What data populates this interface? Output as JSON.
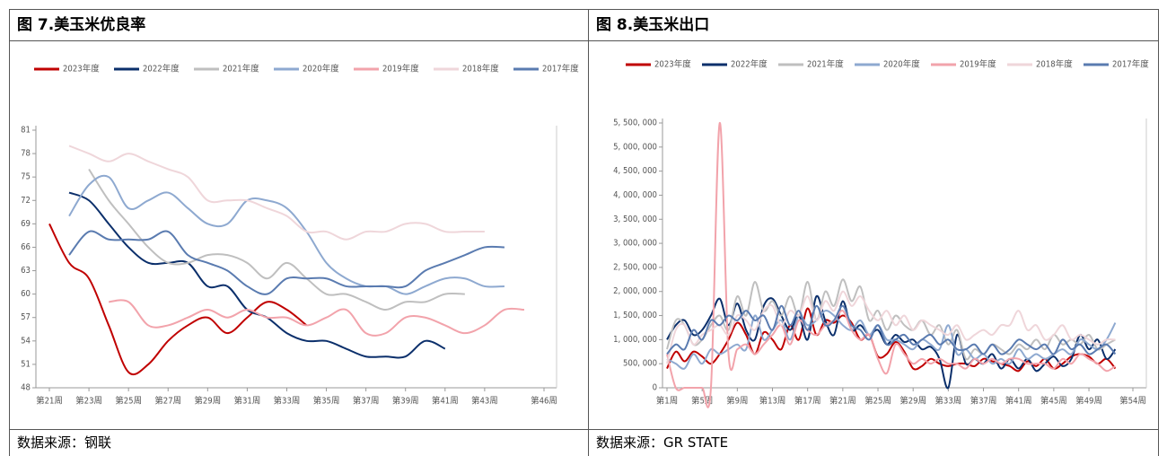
{
  "chart_data": [
    {
      "type": "line",
      "title": "图 7.美玉米优良率",
      "source": "数据来源：钢联",
      "categories": [
        "第21周",
        null,
        "第23周",
        null,
        "第25周",
        null,
        "第27周",
        null,
        "第29周",
        null,
        "第31周",
        null,
        "第33周",
        null,
        "第35周",
        null,
        "第37周",
        null,
        "第39周",
        null,
        "第41周",
        null,
        "第43周",
        null,
        null,
        "第46周"
      ],
      "ylim": [
        48,
        81
      ],
      "yticks": [
        48,
        51,
        54,
        57,
        60,
        63,
        66,
        69,
        72,
        75,
        78,
        81
      ],
      "legend": "top",
      "series": [
        {
          "name": "2023年度",
          "color": "#c00000",
          "values": [
            69,
            64,
            62,
            56,
            50,
            51,
            54,
            56,
            57,
            55,
            57,
            59,
            58,
            56,
            null,
            null,
            null,
            null,
            null,
            null,
            null,
            null,
            null,
            null,
            null,
            null
          ]
        },
        {
          "name": "2022年度",
          "color": "#0b2f6b",
          "values": [
            null,
            73,
            72,
            69,
            66,
            64,
            64,
            64,
            61,
            61,
            58,
            57,
            55,
            54,
            54,
            53,
            52,
            52,
            52,
            54,
            53,
            null,
            null,
            null,
            null,
            null
          ]
        },
        {
          "name": "2021年度",
          "color": "#bfbfbf",
          "values": [
            null,
            null,
            76,
            72,
            69,
            66,
            64,
            64,
            65,
            65,
            64,
            62,
            64,
            62,
            60,
            60,
            59,
            58,
            59,
            59,
            60,
            60,
            null,
            null,
            null,
            null
          ]
        },
        {
          "name": "2020年度",
          "color": "#8ea9d0",
          "values": [
            null,
            70,
            74,
            75,
            71,
            72,
            73,
            71,
            69,
            69,
            72,
            72,
            71,
            68,
            64,
            62,
            61,
            61,
            60,
            61,
            62,
            62,
            61,
            61,
            null,
            null
          ]
        },
        {
          "name": "2019年度",
          "color": "#f2a3ab",
          "values": [
            null,
            null,
            null,
            59,
            59,
            56,
            56,
            57,
            58,
            57,
            58,
            57,
            57,
            56,
            57,
            58,
            55,
            55,
            57,
            57,
            56,
            55,
            56,
            58,
            58,
            null
          ]
        },
        {
          "name": "2018年度",
          "color": "#efd6da",
          "values": [
            null,
            79,
            78,
            77,
            78,
            77,
            76,
            75,
            72,
            72,
            72,
            71,
            70,
            68,
            68,
            67,
            68,
            68,
            69,
            69,
            68,
            68,
            68,
            null,
            null,
            null
          ]
        },
        {
          "name": "2017年度",
          "color": "#5a7bb0",
          "values": [
            null,
            65,
            68,
            67,
            67,
            67,
            68,
            65,
            64,
            63,
            61,
            60,
            62,
            62,
            62,
            61,
            61,
            61,
            61,
            63,
            64,
            65,
            66,
            66,
            null,
            null
          ]
        }
      ]
    },
    {
      "type": "line",
      "title": "图 8.美玉米出口",
      "source": "数据来源：GR STATE",
      "categories": [
        "第1周",
        null,
        null,
        null,
        "第5周",
        null,
        null,
        null,
        "第9周",
        null,
        null,
        null,
        "第13周",
        null,
        null,
        null,
        "第17周",
        null,
        null,
        null,
        "第21周",
        null,
        null,
        null,
        "第25周",
        null,
        null,
        null,
        "第29周",
        null,
        null,
        null,
        "第33周",
        null,
        null,
        null,
        "第37周",
        null,
        null,
        null,
        "第41周",
        null,
        null,
        null,
        "第45周",
        null,
        null,
        null,
        "第49周",
        null,
        null,
        null,
        null,
        "第54周"
      ],
      "ylim": [
        0,
        5500000
      ],
      "yticks": [
        0,
        {
          "value": 500000,
          "label": "500, 000"
        },
        {
          "value": 1000000,
          "label": "1, 000, 000"
        },
        {
          "value": 1500000,
          "label": "1, 500, 000"
        },
        {
          "value": 2000000,
          "label": "2, 000, 000"
        },
        {
          "value": 2500000,
          "label": "2, 500, 000"
        },
        {
          "value": 3000000,
          "label": "3, 000, 000"
        },
        {
          "value": 3500000,
          "label": "3, 500, 000"
        },
        {
          "value": 4000000,
          "label": "4, 000, 000"
        },
        {
          "value": 4500000,
          "label": "4, 500, 000"
        },
        {
          "value": 5000000,
          "label": "5, 000, 000"
        },
        {
          "value": 5500000,
          "label": "5, 500, 000"
        }
      ],
      "legend": "top",
      "series": [
        {
          "name": "2023年度",
          "color": "#c00000",
          "values": [
            400000,
            750000,
            550000,
            750000,
            650000,
            500000,
            700000,
            1000000,
            1350000,
            1100000,
            700000,
            1150000,
            1000000,
            800000,
            1300000,
            1000000,
            1650000,
            1100000,
            1400000,
            1350000,
            1500000,
            1350000,
            1000000,
            1100000,
            650000,
            700000,
            950000,
            750000,
            400000,
            450000,
            600000,
            500000,
            450000,
            500000,
            500000,
            450000,
            600000,
            550000,
            500000,
            450000,
            350000,
            550000,
            450000,
            600000,
            400000,
            500000,
            650000,
            700000,
            650000,
            500000,
            600000,
            400000,
            null,
            null
          ]
        },
        {
          "name": "2022年度",
          "color": "#0b2f6b",
          "values": [
            1000000,
            1300000,
            1400000,
            1100000,
            1200000,
            1500000,
            1850000,
            1300000,
            1750000,
            1200000,
            1000000,
            1700000,
            1850000,
            1500000,
            1200000,
            1500000,
            1000000,
            1900000,
            1400000,
            1100000,
            1800000,
            1200000,
            1300000,
            1100000,
            1200000,
            900000,
            1100000,
            950000,
            1000000,
            800000,
            850000,
            600000,
            0,
            1100000,
            500000,
            600000,
            500000,
            700000,
            400000,
            600000,
            400000,
            600000,
            350000,
            500000,
            650000,
            450000,
            600000,
            1100000,
            800000,
            1000000,
            600000,
            800000,
            null,
            null
          ]
        },
        {
          "name": "2021年度",
          "color": "#bfbfbf",
          "values": [
            800000,
            1400000,
            1300000,
            900000,
            1000000,
            1300000,
            1500000,
            1200000,
            1900000,
            1500000,
            2200000,
            1600000,
            1800000,
            1500000,
            1900000,
            1500000,
            2200000,
            1400000,
            2000000,
            1700000,
            2250000,
            1800000,
            2100000,
            1400000,
            1600000,
            1200000,
            1500000,
            1300000,
            1200000,
            1400000,
            1100000,
            1300000,
            900000,
            1200000,
            600000,
            800000,
            700000,
            900000,
            800000,
            700000,
            900000,
            800000,
            1000000,
            800000,
            1100000,
            900000,
            1000000,
            900000,
            1100000,
            800000,
            900000,
            1000000,
            null,
            null
          ]
        },
        {
          "name": "2020年度",
          "color": "#8ea9d0",
          "values": [
            600000,
            500000,
            400000,
            700000,
            500000,
            800000,
            700000,
            800000,
            900000,
            800000,
            1500000,
            1000000,
            1200000,
            1400000,
            1000000,
            1500000,
            1300000,
            1400000,
            1600000,
            1500000,
            1300000,
            1200000,
            1400000,
            1100000,
            1300000,
            1000000,
            1000000,
            900000,
            800000,
            1000000,
            900000,
            800000,
            1300000,
            700000,
            800000,
            600000,
            700000,
            500000,
            600000,
            500000,
            800000,
            600000,
            700000,
            600000,
            700000,
            800000,
            700000,
            1000000,
            900000,
            800000,
            1000000,
            1350000,
            null,
            null
          ]
        },
        {
          "name": "2019年度",
          "color": "#f2a3ab",
          "values": [
            700000,
            0,
            0,
            0,
            0,
            0,
            5500000,
            700000,
            800000,
            900000,
            700000,
            900000,
            1100000,
            1300000,
            900000,
            1400000,
            1200000,
            1100000,
            1300000,
            1400000,
            1600000,
            1200000,
            1000000,
            1100000,
            600000,
            300000,
            900000,
            700000,
            500000,
            600000,
            500000,
            600000,
            500000,
            500000,
            400000,
            600000,
            500000,
            600000,
            500000,
            600000,
            600000,
            500000,
            500000,
            500000,
            400000,
            600000,
            500000,
            700000,
            600000,
            500000,
            350000,
            450000,
            null,
            null
          ]
        },
        {
          "name": "2018年度",
          "color": "#efd6da",
          "values": [
            500000,
            1200000,
            1300000,
            900000,
            1100000,
            1200000,
            1300000,
            1100000,
            1500000,
            1400000,
            1200000,
            1600000,
            1700000,
            1300000,
            1600000,
            1500000,
            1900000,
            1400000,
            1800000,
            1600000,
            2000000,
            1700000,
            1900000,
            1600000,
            1400000,
            1600000,
            1300000,
            1500000,
            1200000,
            1400000,
            1300000,
            1200000,
            1100000,
            1300000,
            1000000,
            1100000,
            1200000,
            1100000,
            1300000,
            1300000,
            1600000,
            1200000,
            1300000,
            1000000,
            1100000,
            1300000,
            1000000,
            1100000,
            1000000,
            900000,
            1000000,
            1000000,
            null,
            null
          ]
        },
        {
          "name": "2017年度",
          "color": "#5a7bb0",
          "values": [
            700000,
            900000,
            800000,
            1200000,
            1000000,
            1400000,
            1300000,
            1500000,
            1400000,
            1600000,
            1400000,
            1500000,
            1200000,
            1700000,
            1300000,
            1600000,
            1200000,
            1700000,
            1300000,
            1400000,
            1700000,
            1300000,
            1200000,
            1000000,
            1300000,
            900000,
            1000000,
            1100000,
            900000,
            1000000,
            1100000,
            900000,
            1000000,
            800000,
            800000,
            900000,
            700000,
            900000,
            700000,
            800000,
            1000000,
            900000,
            800000,
            900000,
            700000,
            1000000,
            800000,
            900000,
            700000,
            800000,
            900000,
            700000,
            null,
            null
          ]
        }
      ]
    }
  ]
}
